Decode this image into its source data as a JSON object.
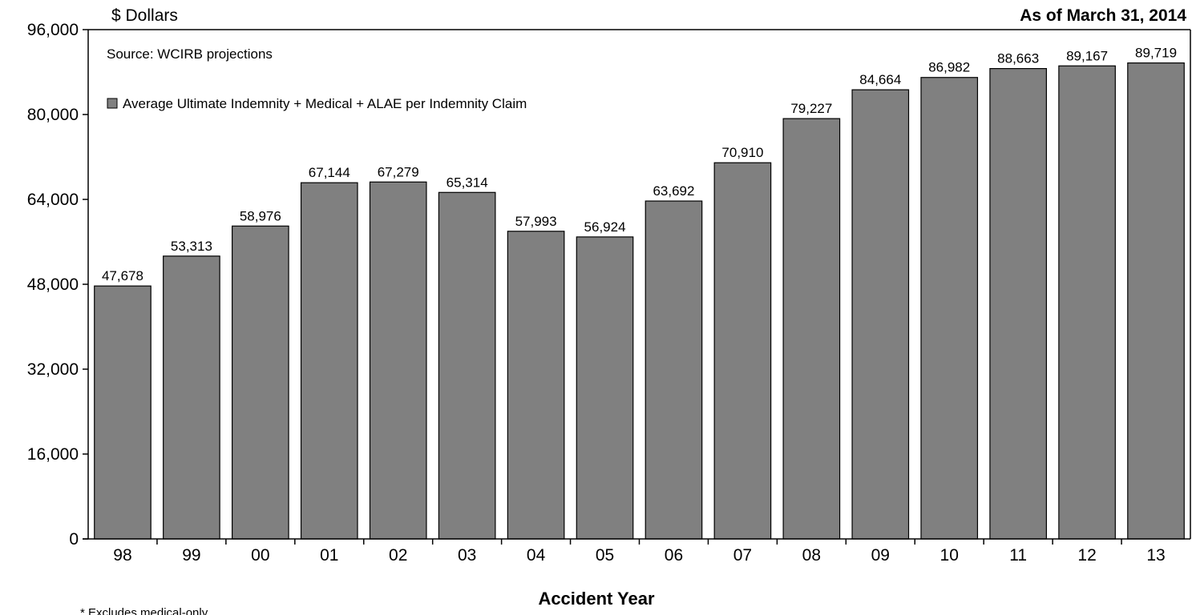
{
  "chart_data": {
    "type": "bar",
    "unit_label": "$ Dollars",
    "date_label": "As of March 31, 2014",
    "source": "Source: WCIRB projections",
    "xlabel": "Accident Year",
    "ylabel": "",
    "ylim": [
      0,
      96000
    ],
    "yticks": [
      "0",
      "16,000",
      "32,000",
      "48,000",
      "64,000",
      "80,000",
      "96,000"
    ],
    "ytick_values": [
      0,
      16000,
      32000,
      48000,
      64000,
      80000,
      96000
    ],
    "categories": [
      "98",
      "99",
      "00",
      "01",
      "02",
      "03",
      "04",
      "05",
      "06",
      "07",
      "08",
      "09",
      "10",
      "11",
      "12",
      "13"
    ],
    "series": [
      {
        "name": "Average Ultimate Indemnity + Medical + ALAE per Indemnity Claim",
        "color": "#808080",
        "values": [
          47678,
          53313,
          58976,
          67144,
          67279,
          65314,
          57993,
          56924,
          63692,
          70910,
          79227,
          84664,
          86982,
          88663,
          89167,
          89719
        ],
        "labels": [
          "47,678",
          "53,313",
          "58,976",
          "67,144",
          "67,279",
          "65,314",
          "57,993",
          "56,924",
          "63,692",
          "70,910",
          "79,227",
          "84,664",
          "86,982",
          "88,663",
          "89,167",
          "89,719"
        ]
      }
    ],
    "legend_position": "top-left",
    "grid": false,
    "footnote": "* Excludes medical-only"
  }
}
